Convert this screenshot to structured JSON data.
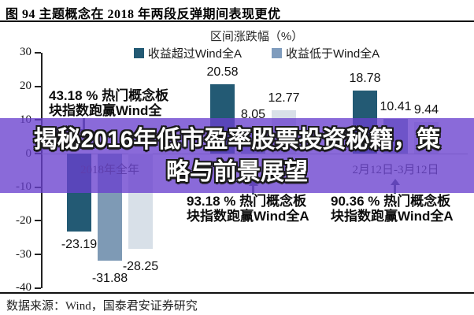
{
  "header": {
    "title": "图 94 主题概念在 2018 年两段反弹期间表现更优"
  },
  "overlay_banner": {
    "line1": "揭秘2016年低市盈率股票投资秘籍，策",
    "line2": "略与前景展望",
    "band_color": "rgba(105,64,206,0.78)"
  },
  "footer": {
    "source": "数据来源：Wind，国泰君安证券研究"
  },
  "chart_data": {
    "type": "bar",
    "title": "区间涨跌幅（%）",
    "legend_position": "top",
    "grid": false,
    "legend": [
      {
        "label": "收益超过Wind全A",
        "color": "#235a74"
      },
      {
        "label": "收益低于Wind全A",
        "color": "#7f9cbd"
      }
    ],
    "categories": [
      "2018年全年",
      "",
      "2月12日-3月12日"
    ],
    "series": [
      {
        "name": "收益超过Wind全A",
        "color": "#235a74",
        "values": [
          -23.19,
          20.58,
          18.78
        ]
      },
      {
        "name": "收益低于Wind全A",
        "color": "#7e9ab5",
        "values": [
          -31.88,
          8.05,
          10.41
        ]
      },
      {
        "name": "",
        "color": "#d8e0e8",
        "values": [
          -28.25,
          12.77,
          9.44
        ]
      }
    ],
    "ylim": [
      -40,
      30
    ],
    "yticks": [
      30,
      20,
      10,
      0,
      -10,
      -20,
      -30,
      -40
    ],
    "annotations": [
      {
        "lines": [
          "43.18 % 热门概念板",
          "块指数跑赢Wind全"
        ],
        "arrow": "down"
      },
      {
        "lines": [
          "93.18 % 热门概念板",
          "块指数跑赢Wind全A"
        ],
        "arrow": "up"
      },
      {
        "lines": [
          "90.36 % 热门概念板",
          "块指数跑赢Wind全A"
        ],
        "arrow": "up"
      }
    ]
  }
}
